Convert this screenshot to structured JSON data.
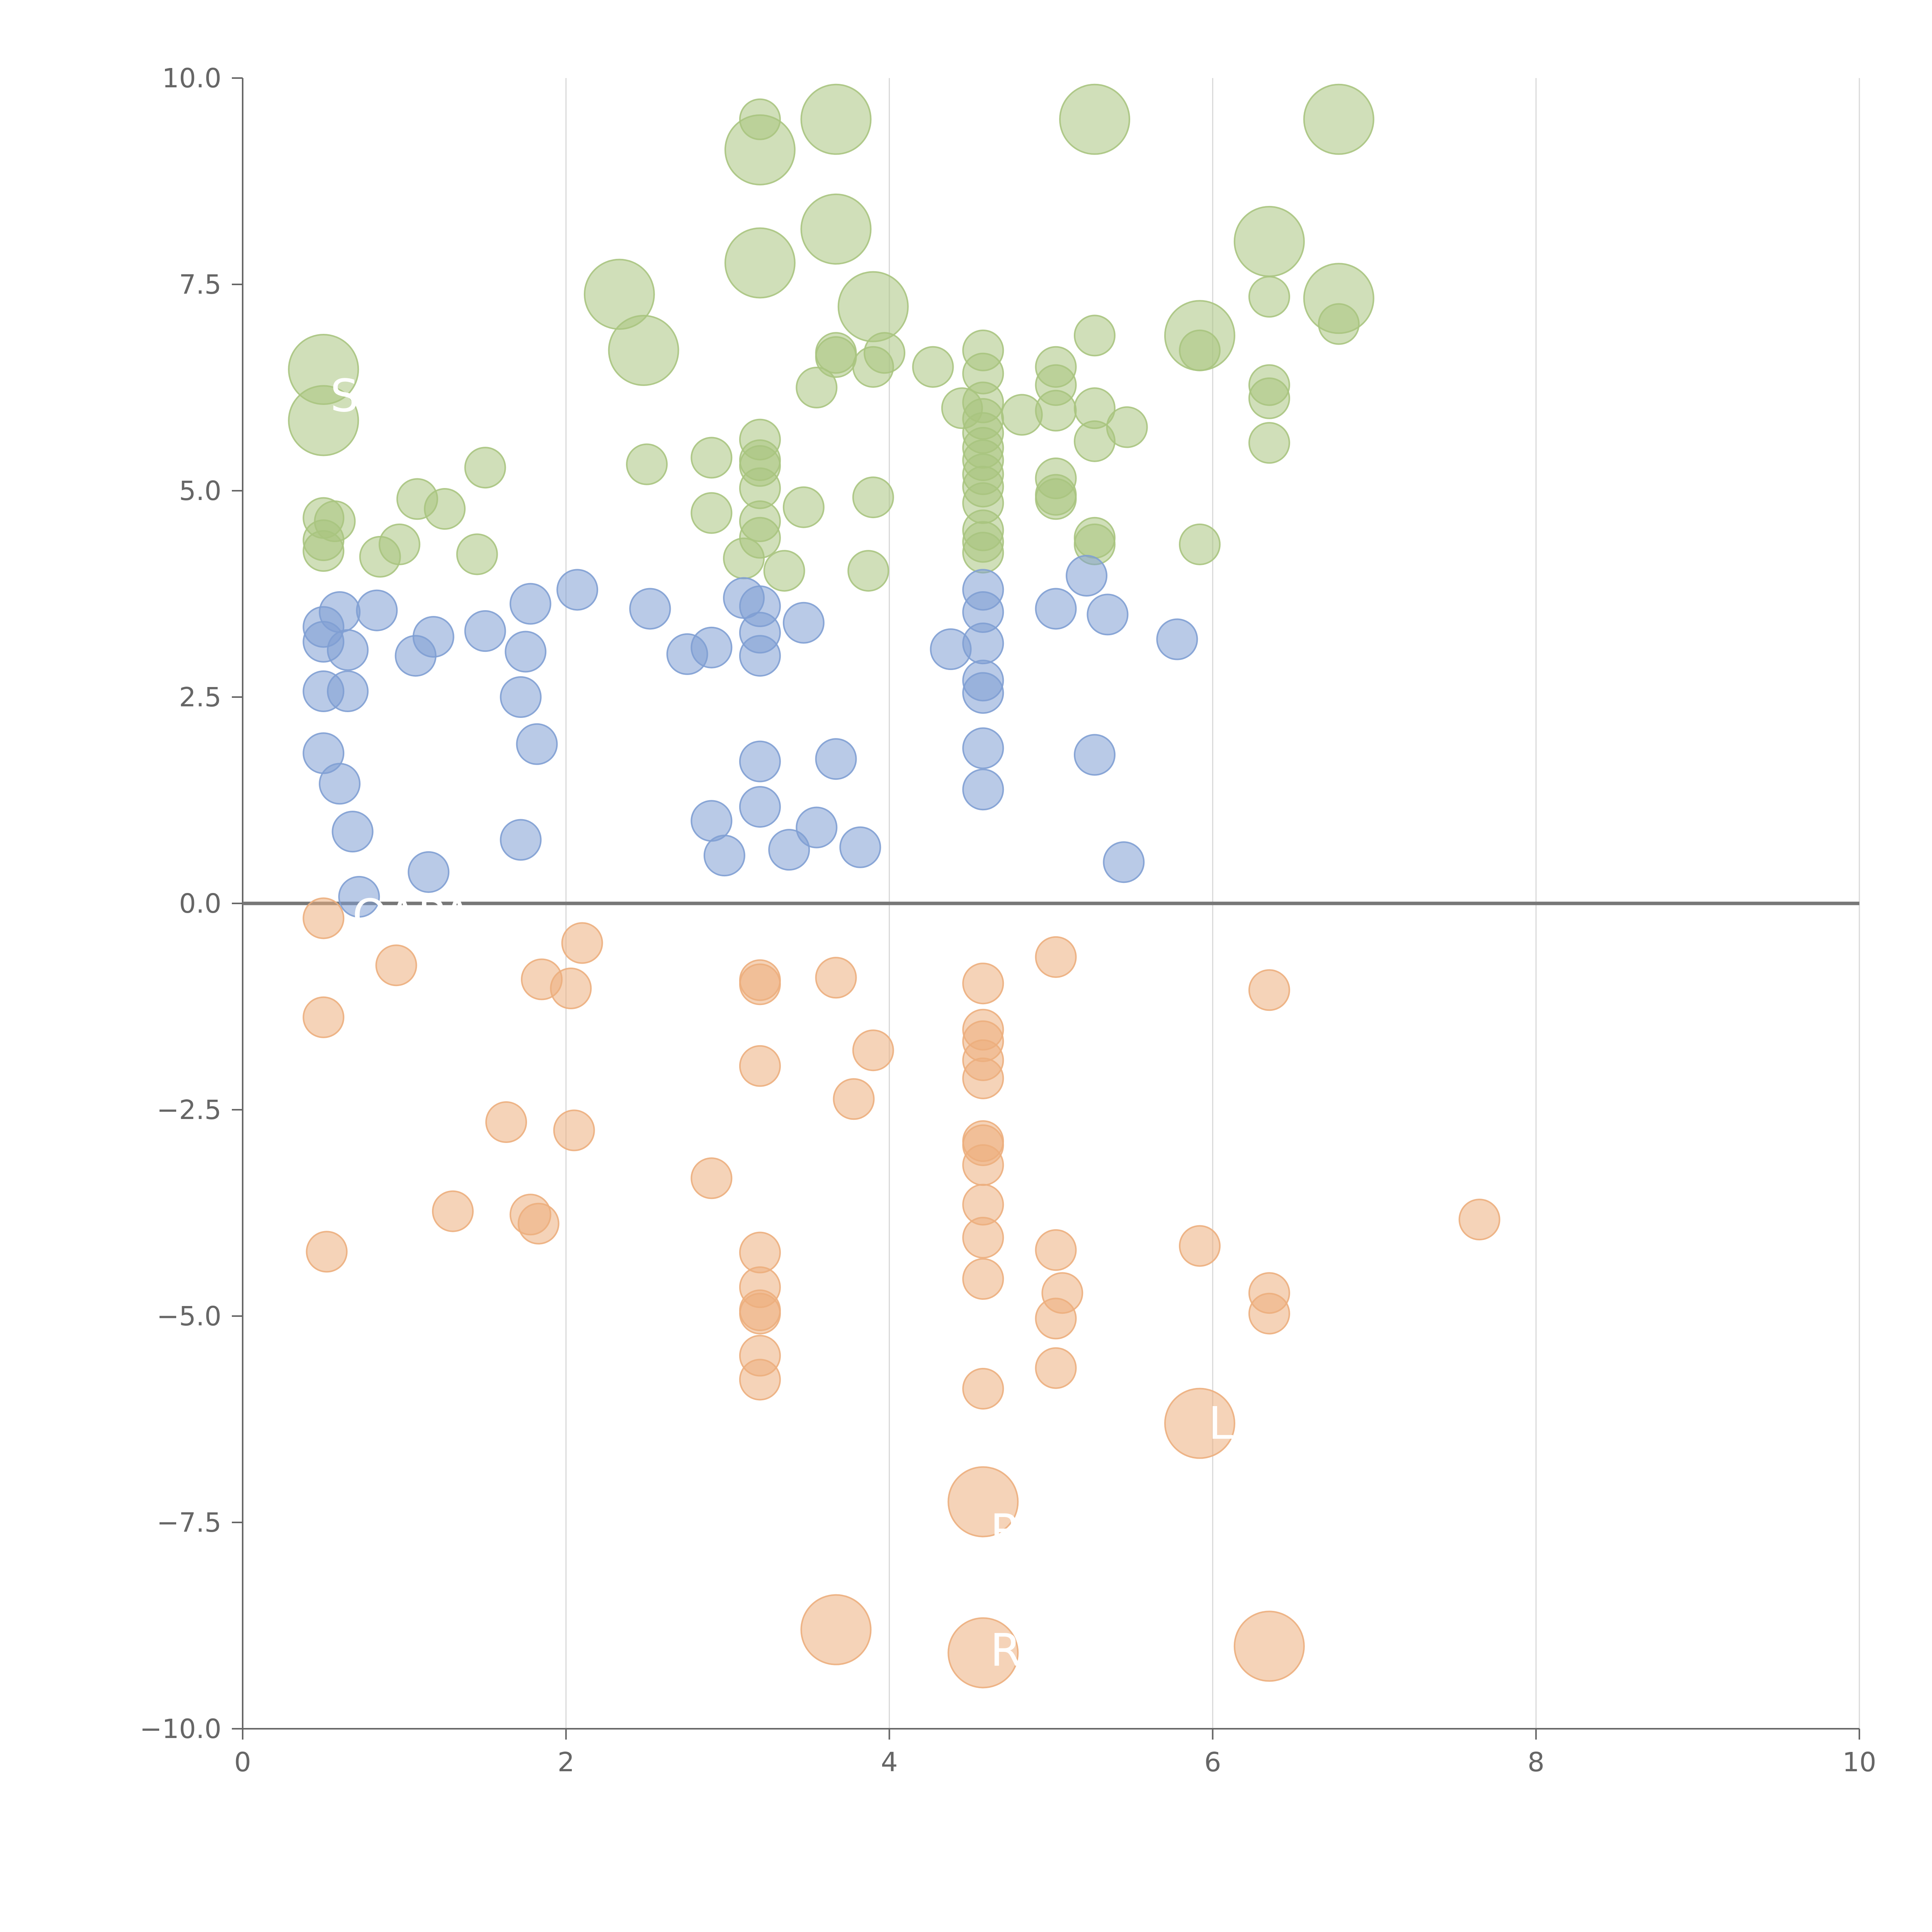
{
  "chart_data": {
    "type": "scatter",
    "title": "",
    "xlabel": "",
    "ylabel": "",
    "xlim": [
      0,
      10
    ],
    "ylim": [
      -10,
      10
    ],
    "x_ticks": [
      0,
      2,
      4,
      6,
      8,
      10
    ],
    "x_tick_labels": [
      "0",
      "2",
      "4",
      "6",
      "8",
      "10"
    ],
    "y_ticks": [
      -10,
      -7.5,
      -5,
      -2.5,
      0,
      2.5,
      5,
      7.5,
      10
    ],
    "y_tick_labels": [
      "−10.0",
      "−7.5",
      "−5.0",
      "−2.5",
      "0.0",
      "2.5",
      "5.0",
      "7.5",
      "10.0"
    ],
    "grid": {
      "vertical": true,
      "horizontal": false
    },
    "zero_line": 0,
    "legend": "none",
    "series": [
      {
        "color": "#a9c47f",
        "points": [
          {
            "x": 3.2,
            "y": 9.5,
            "size": 1
          },
          {
            "x": 3.67,
            "y": 9.5,
            "size": 2
          },
          {
            "x": 3.2,
            "y": 9.13,
            "size": 2
          },
          {
            "x": 5.27,
            "y": 9.5,
            "size": 2
          },
          {
            "x": 6.78,
            "y": 9.5,
            "size": 2
          },
          {
            "x": 3.67,
            "y": 8.17,
            "size": 2
          },
          {
            "x": 6.35,
            "y": 8.02,
            "size": 2
          },
          {
            "x": 3.2,
            "y": 7.76,
            "size": 2
          },
          {
            "x": 2.33,
            "y": 7.38,
            "size": 2
          },
          {
            "x": 6.78,
            "y": 7.33,
            "size": 2
          },
          {
            "x": 6.35,
            "y": 7.35,
            "size": 1
          },
          {
            "x": 3.9,
            "y": 7.23,
            "size": 2
          },
          {
            "x": 6.78,
            "y": 7.02,
            "size": 1
          },
          {
            "x": 5.92,
            "y": 6.88,
            "size": 2
          },
          {
            "x": 5.27,
            "y": 6.88,
            "size": 1
          },
          {
            "x": 2.48,
            "y": 6.7,
            "size": 2
          },
          {
            "x": 5.92,
            "y": 6.7,
            "size": 1
          },
          {
            "x": 4.58,
            "y": 6.7,
            "size": 1
          },
          {
            "x": 3.67,
            "y": 6.67,
            "size": 1
          },
          {
            "x": 3.67,
            "y": 6.62,
            "size": 1
          },
          {
            "x": 3.97,
            "y": 6.67,
            "size": 1
          },
          {
            "x": 4.27,
            "y": 6.5,
            "size": 1
          },
          {
            "x": 3.9,
            "y": 6.5,
            "size": 1
          },
          {
            "x": 0.5,
            "y": 6.47,
            "size": 2
          },
          {
            "x": 5.03,
            "y": 6.5,
            "size": 1
          },
          {
            "x": 4.58,
            "y": 6.42,
            "size": 1
          },
          {
            "x": 5.03,
            "y": 6.28,
            "size": 1
          },
          {
            "x": 6.35,
            "y": 6.28,
            "size": 1
          },
          {
            "x": 3.55,
            "y": 6.25,
            "size": 1
          },
          {
            "x": 6.35,
            "y": 6.12,
            "size": 1
          },
          {
            "x": 4.58,
            "y": 6.07,
            "size": 1
          },
          {
            "x": 4.45,
            "y": 6.0,
            "size": 1
          },
          {
            "x": 5.27,
            "y": 6.0,
            "size": 1
          },
          {
            "x": 5.03,
            "y": 5.97,
            "size": 1
          },
          {
            "x": 4.82,
            "y": 5.92,
            "size": 1
          },
          {
            "x": 4.58,
            "y": 5.87,
            "size": 1
          },
          {
            "x": 0.5,
            "y": 5.85,
            "size": 2
          },
          {
            "x": 5.47,
            "y": 5.77,
            "size": 1
          },
          {
            "x": 4.58,
            "y": 5.7,
            "size": 1
          },
          {
            "x": 3.2,
            "y": 5.62,
            "size": 1
          },
          {
            "x": 5.27,
            "y": 5.6,
            "size": 1
          },
          {
            "x": 6.35,
            "y": 5.58,
            "size": 1
          },
          {
            "x": 4.58,
            "y": 5.52,
            "size": 1
          },
          {
            "x": 2.9,
            "y": 5.4,
            "size": 1
          },
          {
            "x": 3.2,
            "y": 5.37,
            "size": 1
          },
          {
            "x": 4.58,
            "y": 5.37,
            "size": 1
          },
          {
            "x": 2.5,
            "y": 5.32,
            "size": 1
          },
          {
            "x": 3.2,
            "y": 5.3,
            "size": 1
          },
          {
            "x": 1.5,
            "y": 5.28,
            "size": 1
          },
          {
            "x": 4.58,
            "y": 5.2,
            "size": 1
          },
          {
            "x": 5.03,
            "y": 5.15,
            "size": 1
          },
          {
            "x": 4.58,
            "y": 5.05,
            "size": 1
          },
          {
            "x": 3.2,
            "y": 5.03,
            "size": 1
          },
          {
            "x": 5.03,
            "y": 4.95,
            "size": 1
          },
          {
            "x": 5.03,
            "y": 4.9,
            "size": 1
          },
          {
            "x": 3.9,
            "y": 4.92,
            "size": 1
          },
          {
            "x": 1.08,
            "y": 4.9,
            "size": 1
          },
          {
            "x": 4.58,
            "y": 4.85,
            "size": 1
          },
          {
            "x": 3.47,
            "y": 4.8,
            "size": 1
          },
          {
            "x": 1.25,
            "y": 4.78,
            "size": 1
          },
          {
            "x": 2.9,
            "y": 4.73,
            "size": 1
          },
          {
            "x": 0.5,
            "y": 4.67,
            "size": 1
          },
          {
            "x": 0.57,
            "y": 4.63,
            "size": 1
          },
          {
            "x": 3.2,
            "y": 4.63,
            "size": 1
          },
          {
            "x": 4.58,
            "y": 4.52,
            "size": 1
          },
          {
            "x": 5.27,
            "y": 4.43,
            "size": 1
          },
          {
            "x": 3.2,
            "y": 4.43,
            "size": 1
          },
          {
            "x": 0.5,
            "y": 4.4,
            "size": 1
          },
          {
            "x": 4.58,
            "y": 4.38,
            "size": 1
          },
          {
            "x": 5.27,
            "y": 4.35,
            "size": 1
          },
          {
            "x": 0.97,
            "y": 4.35,
            "size": 1
          },
          {
            "x": 5.92,
            "y": 4.35,
            "size": 1
          },
          {
            "x": 0.5,
            "y": 4.27,
            "size": 1
          },
          {
            "x": 1.45,
            "y": 4.23,
            "size": 1
          },
          {
            "x": 4.58,
            "y": 4.25,
            "size": 1
          },
          {
            "x": 0.85,
            "y": 4.2,
            "size": 1
          },
          {
            "x": 3.1,
            "y": 4.18,
            "size": 1
          },
          {
            "x": 3.35,
            "y": 4.03,
            "size": 1
          },
          {
            "x": 3.87,
            "y": 4.03,
            "size": 1
          }
        ]
      },
      {
        "color": "#7f9fd3",
        "points": [
          {
            "x": 2.07,
            "y": 3.8,
            "size": 1
          },
          {
            "x": 4.58,
            "y": 3.8,
            "size": 1
          },
          {
            "x": 5.22,
            "y": 3.97,
            "size": 1
          },
          {
            "x": 3.1,
            "y": 3.7,
            "size": 1
          },
          {
            "x": 1.78,
            "y": 3.63,
            "size": 1
          },
          {
            "x": 3.2,
            "y": 3.6,
            "size": 1
          },
          {
            "x": 5.03,
            "y": 3.57,
            "size": 1
          },
          {
            "x": 2.52,
            "y": 3.57,
            "size": 1
          },
          {
            "x": 0.83,
            "y": 3.55,
            "size": 1
          },
          {
            "x": 4.58,
            "y": 3.53,
            "size": 1
          },
          {
            "x": 0.6,
            "y": 3.53,
            "size": 1
          },
          {
            "x": 5.35,
            "y": 3.5,
            "size": 1
          },
          {
            "x": 3.47,
            "y": 3.4,
            "size": 1
          },
          {
            "x": 0.5,
            "y": 3.35,
            "size": 1
          },
          {
            "x": 1.5,
            "y": 3.3,
            "size": 1
          },
          {
            "x": 3.2,
            "y": 3.28,
            "size": 1
          },
          {
            "x": 1.18,
            "y": 3.23,
            "size": 1
          },
          {
            "x": 5.78,
            "y": 3.2,
            "size": 1
          },
          {
            "x": 0.5,
            "y": 3.17,
            "size": 1
          },
          {
            "x": 4.58,
            "y": 3.15,
            "size": 1
          },
          {
            "x": 2.9,
            "y": 3.1,
            "size": 1
          },
          {
            "x": 4.38,
            "y": 3.08,
            "size": 1
          },
          {
            "x": 0.65,
            "y": 3.07,
            "size": 1
          },
          {
            "x": 1.75,
            "y": 3.05,
            "size": 1
          },
          {
            "x": 2.75,
            "y": 3.02,
            "size": 1
          },
          {
            "x": 1.07,
            "y": 3.0,
            "size": 1
          },
          {
            "x": 3.2,
            "y": 3.0,
            "size": 1
          },
          {
            "x": 4.58,
            "y": 2.7,
            "size": 1
          },
          {
            "x": 0.5,
            "y": 2.57,
            "size": 1
          },
          {
            "x": 0.65,
            "y": 2.57,
            "size": 1
          },
          {
            "x": 4.58,
            "y": 2.55,
            "size": 1
          },
          {
            "x": 1.72,
            "y": 2.5,
            "size": 1
          },
          {
            "x": 1.82,
            "y": 1.93,
            "size": 1
          },
          {
            "x": 4.58,
            "y": 1.88,
            "size": 1
          },
          {
            "x": 0.5,
            "y": 1.82,
            "size": 1
          },
          {
            "x": 5.27,
            "y": 1.8,
            "size": 1
          },
          {
            "x": 3.67,
            "y": 1.75,
            "size": 1
          },
          {
            "x": 3.2,
            "y": 1.72,
            "size": 1
          },
          {
            "x": 0.6,
            "y": 1.45,
            "size": 1
          },
          {
            "x": 4.58,
            "y": 1.38,
            "size": 1
          },
          {
            "x": 3.2,
            "y": 1.17,
            "size": 1
          },
          {
            "x": 2.9,
            "y": 1.0,
            "size": 1
          },
          {
            "x": 3.55,
            "y": 0.92,
            "size": 1
          },
          {
            "x": 0.68,
            "y": 0.87,
            "size": 1
          },
          {
            "x": 1.72,
            "y": 0.77,
            "size": 1
          },
          {
            "x": 3.82,
            "y": 0.68,
            "size": 1
          },
          {
            "x": 3.38,
            "y": 0.65,
            "size": 1
          },
          {
            "x": 2.98,
            "y": 0.58,
            "size": 1
          },
          {
            "x": 5.45,
            "y": 0.5,
            "size": 1
          },
          {
            "x": 1.15,
            "y": 0.38,
            "size": 1
          },
          {
            "x": 0.72,
            "y": 0.08,
            "size": 1
          }
        ]
      },
      {
        "color": "#ecae7d",
        "points": [
          {
            "x": 0.5,
            "y": -0.18,
            "size": 1
          },
          {
            "x": 2.1,
            "y": -0.48,
            "size": 1
          },
          {
            "x": 5.03,
            "y": -0.65,
            "size": 1
          },
          {
            "x": 0.95,
            "y": -0.75,
            "size": 1
          },
          {
            "x": 3.67,
            "y": -0.9,
            "size": 1
          },
          {
            "x": 1.85,
            "y": -0.92,
            "size": 1
          },
          {
            "x": 3.2,
            "y": -0.93,
            "size": 1
          },
          {
            "x": 3.2,
            "y": -0.98,
            "size": 1
          },
          {
            "x": 4.58,
            "y": -0.97,
            "size": 1
          },
          {
            "x": 2.03,
            "y": -1.03,
            "size": 1
          },
          {
            "x": 6.35,
            "y": -1.05,
            "size": 1
          },
          {
            "x": 0.5,
            "y": -1.38,
            "size": 1
          },
          {
            "x": 4.58,
            "y": -1.53,
            "size": 1
          },
          {
            "x": 4.58,
            "y": -1.67,
            "size": 1
          },
          {
            "x": 3.9,
            "y": -1.78,
            "size": 1
          },
          {
            "x": 4.58,
            "y": -1.9,
            "size": 1
          },
          {
            "x": 3.2,
            "y": -1.97,
            "size": 1
          },
          {
            "x": 4.58,
            "y": -2.12,
            "size": 1
          },
          {
            "x": 3.78,
            "y": -2.37,
            "size": 1
          },
          {
            "x": 1.63,
            "y": -2.65,
            "size": 1
          },
          {
            "x": 2.05,
            "y": -2.75,
            "size": 1
          },
          {
            "x": 4.58,
            "y": -2.88,
            "size": 1
          },
          {
            "x": 4.58,
            "y": -2.93,
            "size": 1
          },
          {
            "x": 4.58,
            "y": -3.17,
            "size": 1
          },
          {
            "x": 2.9,
            "y": -3.33,
            "size": 1
          },
          {
            "x": 4.58,
            "y": -3.65,
            "size": 1
          },
          {
            "x": 1.3,
            "y": -3.73,
            "size": 1
          },
          {
            "x": 1.78,
            "y": -3.77,
            "size": 1
          },
          {
            "x": 7.65,
            "y": -3.83,
            "size": 1
          },
          {
            "x": 1.83,
            "y": -3.88,
            "size": 1
          },
          {
            "x": 4.58,
            "y": -4.05,
            "size": 1
          },
          {
            "x": 5.92,
            "y": -4.15,
            "size": 1
          },
          {
            "x": 5.03,
            "y": -4.2,
            "size": 1
          },
          {
            "x": 3.2,
            "y": -4.23,
            "size": 1
          },
          {
            "x": 0.52,
            "y": -4.22,
            "size": 1
          },
          {
            "x": 4.58,
            "y": -4.55,
            "size": 1
          },
          {
            "x": 3.2,
            "y": -4.65,
            "size": 1
          },
          {
            "x": 6.35,
            "y": -4.72,
            "size": 1
          },
          {
            "x": 5.07,
            "y": -4.72,
            "size": 1
          },
          {
            "x": 3.2,
            "y": -4.93,
            "size": 1
          },
          {
            "x": 3.2,
            "y": -4.97,
            "size": 1
          },
          {
            "x": 6.35,
            "y": -4.97,
            "size": 1
          },
          {
            "x": 5.03,
            "y": -5.03,
            "size": 1
          },
          {
            "x": 3.2,
            "y": -5.48,
            "size": 1
          },
          {
            "x": 5.03,
            "y": -5.63,
            "size": 1
          },
          {
            "x": 3.2,
            "y": -5.77,
            "size": 1
          },
          {
            "x": 4.58,
            "y": -5.88,
            "size": 1
          },
          {
            "x": 5.92,
            "y": -6.3,
            "size": 2
          },
          {
            "x": 4.58,
            "y": -7.25,
            "size": 2
          },
          {
            "x": 3.67,
            "y": -8.8,
            "size": 2
          },
          {
            "x": 6.35,
            "y": -9.0,
            "size": 2
          },
          {
            "x": 4.58,
            "y": -9.08,
            "size": 2
          }
        ]
      }
    ],
    "labels": [
      {
        "text": "S",
        "x": 0.63,
        "y": 6.15
      },
      {
        "text": "L",
        "x": 6.05,
        "y": -6.3
      },
      {
        "text": "R",
        "x": 4.72,
        "y": -9.05
      },
      {
        "text": "R",
        "x": 4.72,
        "y": -7.6
      },
      {
        "text": "OAPA",
        "x": 1.05,
        "y": -0.15
      }
    ]
  }
}
